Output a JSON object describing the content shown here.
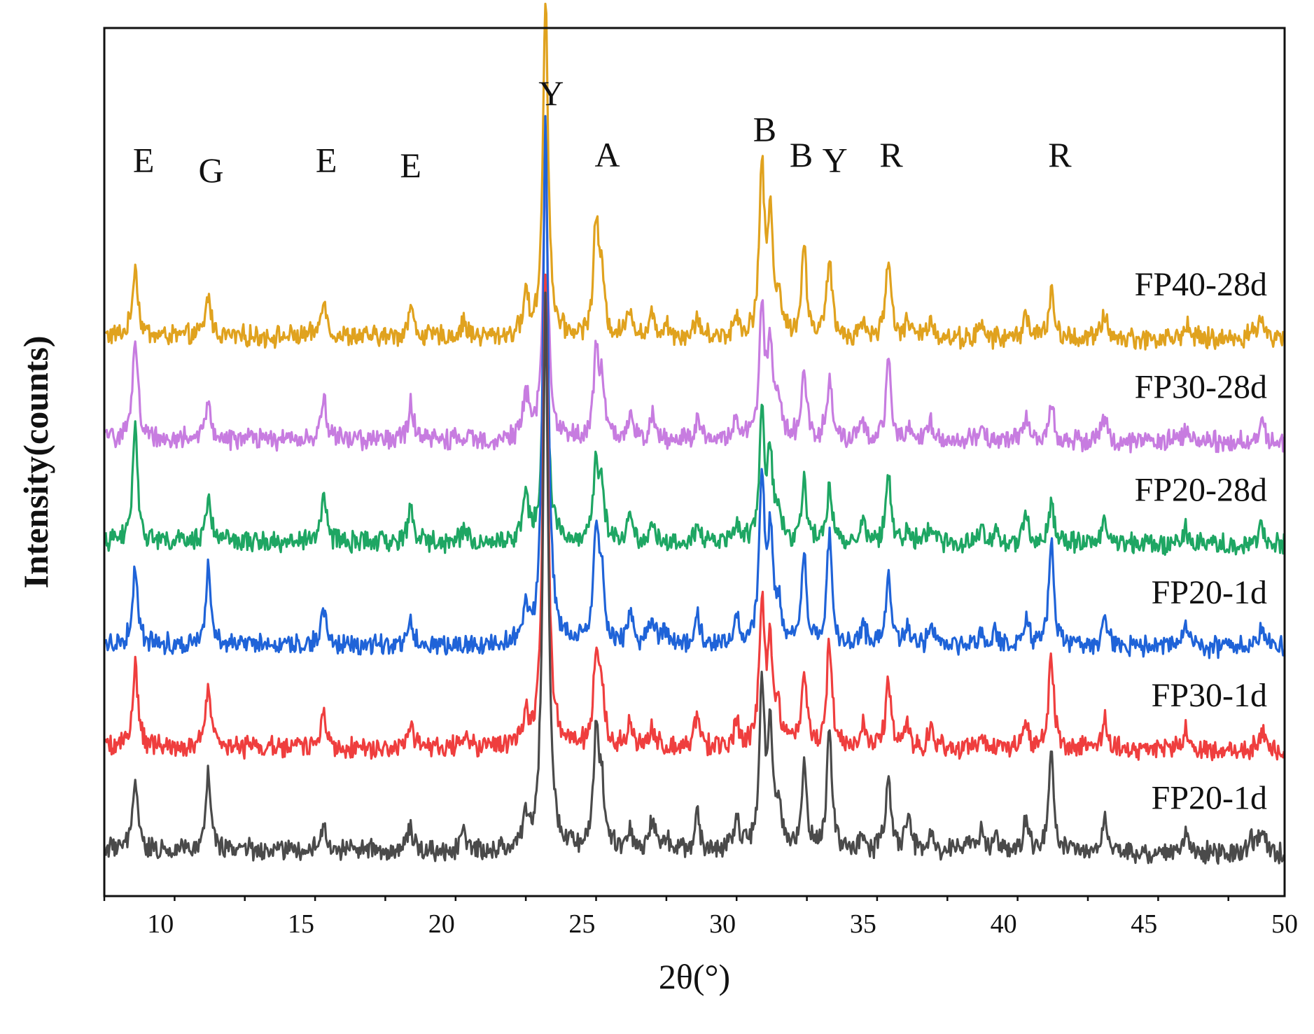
{
  "chart_data": {
    "type": "line",
    "title": "",
    "xlabel": "2θ(°)",
    "ylabel": "Intensity(counts)",
    "xlim": [
      8,
      50
    ],
    "x_ticks": [
      10,
      15,
      20,
      25,
      30,
      35,
      40,
      45,
      50
    ],
    "y_ticks_shown": false,
    "stacking": "vertically offset patterns, top to bottom",
    "series": [
      {
        "name": "FP40-28d",
        "color": "#E0A21E",
        "baseline": 5,
        "slope": 0.03,
        "noise": 0.17,
        "peaks": [
          [
            9.1,
            0.7
          ],
          [
            11.7,
            0.4
          ],
          [
            15.8,
            0.4
          ],
          [
            18.9,
            0.3
          ],
          [
            20.8,
            0.15
          ],
          [
            23.0,
            0.4
          ],
          [
            23.7,
            3.3
          ],
          [
            25.5,
            1.1
          ],
          [
            25.7,
            0.5
          ],
          [
            26.7,
            0.3
          ],
          [
            27.5,
            0.2
          ],
          [
            28.0,
            0.15
          ],
          [
            29.1,
            0.2
          ],
          [
            30.5,
            0.2
          ],
          [
            31.4,
            1.6
          ],
          [
            31.7,
            1.1
          ],
          [
            32.0,
            0.35
          ],
          [
            32.9,
            0.85
          ],
          [
            33.8,
            0.75
          ],
          [
            35.0,
            0.15
          ],
          [
            35.9,
            0.8
          ],
          [
            36.6,
            0.15
          ],
          [
            37.4,
            0.2
          ],
          [
            39.2,
            0.12
          ],
          [
            40.8,
            0.25
          ],
          [
            41.7,
            0.45
          ],
          [
            43.6,
            0.25
          ],
          [
            46.5,
            0.15
          ],
          [
            48.8,
            0.1
          ],
          [
            49.2,
            0.2
          ]
        ]
      },
      {
        "name": "FP30-28d",
        "color": "#C77CE0",
        "baseline": 4,
        "slope": 0.03,
        "noise": 0.17,
        "peaks": [
          [
            9.1,
            1.0
          ],
          [
            11.7,
            0.35
          ],
          [
            15.8,
            0.4
          ],
          [
            18.9,
            0.35
          ],
          [
            23.0,
            0.45
          ],
          [
            23.7,
            2.6
          ],
          [
            25.5,
            0.8
          ],
          [
            25.7,
            0.5
          ],
          [
            26.7,
            0.2
          ],
          [
            27.5,
            0.25
          ],
          [
            29.1,
            0.2
          ],
          [
            30.5,
            0.2
          ],
          [
            31.4,
            1.3
          ],
          [
            31.7,
            0.9
          ],
          [
            32.0,
            0.3
          ],
          [
            32.9,
            0.7
          ],
          [
            33.8,
            0.6
          ],
          [
            35.0,
            0.15
          ],
          [
            35.9,
            0.75
          ],
          [
            36.6,
            0.15
          ],
          [
            37.4,
            0.2
          ],
          [
            39.2,
            0.12
          ],
          [
            40.8,
            0.25
          ],
          [
            41.7,
            0.4
          ],
          [
            43.6,
            0.25
          ],
          [
            46.5,
            0.15
          ],
          [
            49.2,
            0.2
          ]
        ]
      },
      {
        "name": "FP20-28d",
        "color": "#1EA663",
        "baseline": 3,
        "slope": 0.03,
        "noise": 0.17,
        "peaks": [
          [
            9.1,
            1.1
          ],
          [
            11.7,
            0.45
          ],
          [
            15.8,
            0.5
          ],
          [
            18.9,
            0.35
          ],
          [
            20.8,
            0.15
          ],
          [
            23.0,
            0.5
          ],
          [
            23.7,
            2.5
          ],
          [
            25.5,
            0.75
          ],
          [
            25.7,
            0.5
          ],
          [
            26.7,
            0.3
          ],
          [
            27.5,
            0.2
          ],
          [
            29.1,
            0.2
          ],
          [
            30.5,
            0.2
          ],
          [
            31.4,
            1.2
          ],
          [
            31.7,
            0.8
          ],
          [
            32.0,
            0.3
          ],
          [
            32.9,
            0.6
          ],
          [
            33.8,
            0.55
          ],
          [
            35.0,
            0.2
          ],
          [
            35.9,
            0.7
          ],
          [
            36.6,
            0.15
          ],
          [
            37.4,
            0.2
          ],
          [
            39.2,
            0.12
          ],
          [
            39.7,
            0.12
          ],
          [
            40.8,
            0.3
          ],
          [
            41.7,
            0.4
          ],
          [
            43.6,
            0.25
          ],
          [
            46.5,
            0.15
          ],
          [
            49.2,
            0.2
          ]
        ]
      },
      {
        "name": "FP20-1d",
        "color": "#1F63D8",
        "baseline": 2,
        "slope": 0.03,
        "noise": 0.17,
        "peaks": [
          [
            9.1,
            0.75
          ],
          [
            11.7,
            0.8
          ],
          [
            15.8,
            0.35
          ],
          [
            18.9,
            0.2
          ],
          [
            23.0,
            0.35
          ],
          [
            23.7,
            5.1
          ],
          [
            25.5,
            1.1
          ],
          [
            25.7,
            0.6
          ],
          [
            26.7,
            0.3
          ],
          [
            27.5,
            0.25
          ],
          [
            28.0,
            0.15
          ],
          [
            29.1,
            0.3
          ],
          [
            30.5,
            0.25
          ],
          [
            31.4,
            1.6
          ],
          [
            31.7,
            1.0
          ],
          [
            32.0,
            0.35
          ],
          [
            32.9,
            0.85
          ],
          [
            33.8,
            1.05
          ],
          [
            35.0,
            0.2
          ],
          [
            35.9,
            0.7
          ],
          [
            36.6,
            0.2
          ],
          [
            37.4,
            0.2
          ],
          [
            39.2,
            0.15
          ],
          [
            39.7,
            0.15
          ],
          [
            40.8,
            0.25
          ],
          [
            41.7,
            1.0
          ],
          [
            43.6,
            0.3
          ],
          [
            46.5,
            0.2
          ],
          [
            49.2,
            0.2
          ]
        ]
      },
      {
        "name": "FP30-1d",
        "color": "#EF3E3E",
        "baseline": 1,
        "slope": 0.03,
        "noise": 0.17,
        "peaks": [
          [
            9.1,
            0.8
          ],
          [
            11.7,
            0.6
          ],
          [
            15.8,
            0.35
          ],
          [
            18.9,
            0.2
          ],
          [
            20.8,
            0.1
          ],
          [
            23.0,
            0.3
          ],
          [
            23.7,
            4.6
          ],
          [
            25.5,
            0.9
          ],
          [
            25.7,
            0.5
          ],
          [
            26.7,
            0.25
          ],
          [
            27.5,
            0.2
          ],
          [
            29.1,
            0.3
          ],
          [
            30.5,
            0.25
          ],
          [
            31.4,
            1.4
          ],
          [
            31.7,
            0.95
          ],
          [
            32.0,
            0.3
          ],
          [
            32.9,
            0.75
          ],
          [
            33.8,
            1.05
          ],
          [
            35.0,
            0.2
          ],
          [
            35.9,
            0.65
          ],
          [
            36.6,
            0.2
          ],
          [
            37.4,
            0.2
          ],
          [
            39.2,
            0.15
          ],
          [
            40.8,
            0.25
          ],
          [
            41.7,
            0.9
          ],
          [
            43.6,
            0.3
          ],
          [
            46.5,
            0.2
          ],
          [
            49.2,
            0.2
          ]
        ]
      },
      {
        "name": "FP20-1d",
        "color": "#4A4A4A",
        "baseline": 0,
        "slope": 0.03,
        "noise": 0.17,
        "peaks": [
          [
            9.1,
            0.65
          ],
          [
            11.7,
            0.75
          ],
          [
            15.8,
            0.25
          ],
          [
            18.9,
            0.2
          ],
          [
            20.8,
            0.15
          ],
          [
            23.0,
            0.3
          ],
          [
            23.7,
            5.4
          ],
          [
            25.5,
            1.1
          ],
          [
            25.7,
            0.6
          ],
          [
            26.7,
            0.2
          ],
          [
            27.5,
            0.3
          ],
          [
            28.0,
            0.15
          ],
          [
            29.1,
            0.35
          ],
          [
            30.5,
            0.3
          ],
          [
            31.4,
            1.55
          ],
          [
            31.7,
            1.1
          ],
          [
            32.0,
            0.35
          ],
          [
            32.9,
            0.8
          ],
          [
            33.8,
            1.2
          ],
          [
            35.0,
            0.15
          ],
          [
            35.9,
            0.7
          ],
          [
            36.6,
            0.3
          ],
          [
            37.4,
            0.2
          ],
          [
            38.7,
            0.12
          ],
          [
            39.2,
            0.2
          ],
          [
            39.7,
            0.15
          ],
          [
            40.8,
            0.3
          ],
          [
            41.7,
            1.0
          ],
          [
            43.6,
            0.3
          ],
          [
            46.5,
            0.2
          ],
          [
            48.8,
            0.15
          ],
          [
            49.2,
            0.25
          ]
        ]
      }
    ],
    "peak_labels": [
      {
        "text": "E",
        "x": 9.4,
        "y": 6.6
      },
      {
        "text": "G",
        "x": 11.8,
        "y": 6.5
      },
      {
        "text": "E",
        "x": 15.9,
        "y": 6.6
      },
      {
        "text": "E",
        "x": 18.9,
        "y": 6.55
      },
      {
        "text": "Y",
        "x": 23.9,
        "y": 7.25
      },
      {
        "text": "A",
        "x": 25.9,
        "y": 6.65
      },
      {
        "text": "B",
        "x": 31.5,
        "y": 6.9
      },
      {
        "text": "B",
        "x": 32.8,
        "y": 6.65
      },
      {
        "text": "Y",
        "x": 34.0,
        "y": 6.6
      },
      {
        "text": "R",
        "x": 36.0,
        "y": 6.65
      },
      {
        "text": "R",
        "x": 42.0,
        "y": 6.65
      }
    ],
    "ylim": [
      -0.45,
      8.0
    ]
  }
}
